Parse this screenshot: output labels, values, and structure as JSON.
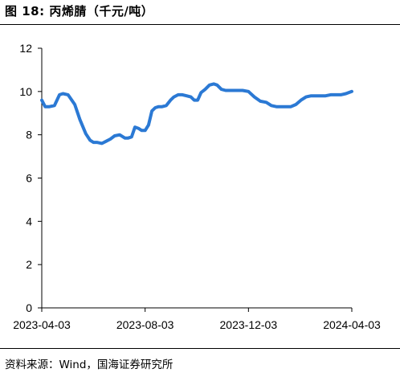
{
  "title": "图 18:  丙烯腈（千元/吨）",
  "source": "资料来源：Wind，国海证券研究所",
  "colors": {
    "line": "#2b79d4",
    "axis": "#000000"
  },
  "chart_data": {
    "type": "line",
    "title": "",
    "xlabel": "",
    "ylabel": "",
    "ylim": [
      0,
      12
    ],
    "yticks": [
      "0",
      "2",
      "4",
      "6",
      "8",
      "10",
      "12"
    ],
    "xticks": [
      "2023-04-03",
      "2023-08-03",
      "2023-12-03",
      "2024-04-03"
    ],
    "xlim": [
      "2023-04-03",
      "2024-04-03"
    ],
    "grid": false,
    "legend": "none",
    "series": [
      {
        "name": "",
        "x": [
          "2023-04-03",
          "2023-04-07",
          "2023-04-12",
          "2023-04-18",
          "2023-04-24",
          "2023-04-28",
          "2023-05-04",
          "2023-05-12",
          "2023-05-18",
          "2023-05-25",
          "2023-05-30",
          "2023-06-03",
          "2023-06-07",
          "2023-06-13",
          "2023-06-18",
          "2023-06-23",
          "2023-06-28",
          "2023-07-04",
          "2023-07-10",
          "2023-07-14",
          "2023-07-18",
          "2023-07-22",
          "2023-07-26",
          "2023-07-30",
          "2023-08-03",
          "2023-08-07",
          "2023-08-11",
          "2023-08-15",
          "2023-08-19",
          "2023-08-23",
          "2023-08-28",
          "2023-09-02",
          "2023-09-06",
          "2023-09-11",
          "2023-09-16",
          "2023-09-21",
          "2023-09-26",
          "2023-09-30",
          "2023-10-04",
          "2023-10-08",
          "2023-10-13",
          "2023-10-18",
          "2023-10-23",
          "2023-10-27",
          "2023-11-01",
          "2023-11-06",
          "2023-11-11",
          "2023-11-16",
          "2023-11-21",
          "2023-11-26",
          "2023-12-03",
          "2023-12-10",
          "2023-12-17",
          "2023-12-24",
          "2023-12-30",
          "2024-01-05",
          "2024-01-10",
          "2024-01-16",
          "2024-01-22",
          "2024-01-28",
          "2024-02-03",
          "2024-02-09",
          "2024-02-15",
          "2024-02-21",
          "2024-02-27",
          "2024-03-03",
          "2024-03-09",
          "2024-03-15",
          "2024-03-21",
          "2024-03-27",
          "2024-04-03"
        ],
        "y": [
          9.6,
          9.3,
          9.3,
          9.35,
          9.85,
          9.9,
          9.85,
          9.4,
          8.7,
          8.05,
          7.75,
          7.65,
          7.65,
          7.6,
          7.7,
          7.8,
          7.95,
          8.0,
          7.85,
          7.85,
          7.9,
          8.35,
          8.3,
          8.2,
          8.2,
          8.45,
          9.1,
          9.25,
          9.3,
          9.3,
          9.35,
          9.6,
          9.75,
          9.85,
          9.85,
          9.8,
          9.75,
          9.6,
          9.6,
          9.95,
          10.1,
          10.3,
          10.35,
          10.3,
          10.1,
          10.05,
          10.05,
          10.05,
          10.05,
          10.05,
          10.0,
          9.75,
          9.55,
          9.5,
          9.35,
          9.3,
          9.3,
          9.3,
          9.3,
          9.4,
          9.6,
          9.75,
          9.8,
          9.8,
          9.8,
          9.8,
          9.85,
          9.85,
          9.85,
          9.9,
          10.0
        ]
      }
    ]
  }
}
